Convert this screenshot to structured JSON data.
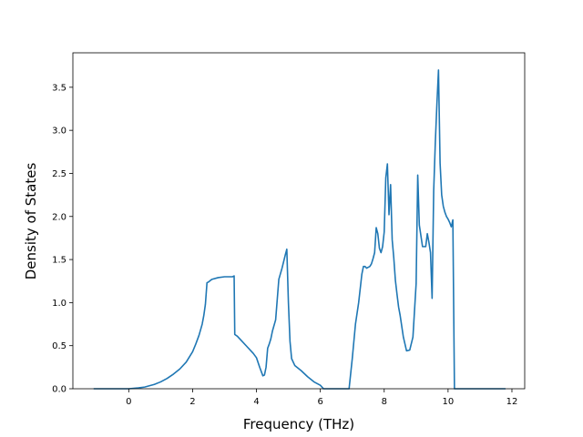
{
  "chart_data": {
    "type": "line",
    "title": "",
    "xlabel": "Frequency (THz)",
    "ylabel": "Density of States",
    "xlim": [
      -1.75,
      12.4
    ],
    "ylim": [
      0.0,
      3.9
    ],
    "x_ticks": [
      0,
      2,
      4,
      6,
      8,
      10,
      12
    ],
    "x_tick_labels": [
      "0",
      "2",
      "4",
      "6",
      "8",
      "10",
      "12"
    ],
    "y_ticks": [
      0.0,
      0.5,
      1.0,
      1.5,
      2.0,
      2.5,
      3.0,
      3.5
    ],
    "y_tick_labels": [
      "0.0",
      "0.5",
      "1.0",
      "1.5",
      "2.0",
      "2.5",
      "3.0",
      "3.5"
    ],
    "grid": false,
    "legend": "none",
    "colors": {
      "line": "#1f77b4",
      "axes": "#000000",
      "background": "#ffffff"
    },
    "series": [
      {
        "x": [
          -1.1,
          -0.5,
          0.0,
          0.3,
          0.5,
          0.8,
          1.0,
          1.2,
          1.4,
          1.6,
          1.8,
          2.0,
          2.1,
          2.2,
          2.3,
          2.35,
          2.4,
          2.45,
          2.5,
          2.6,
          2.8,
          3.0,
          3.2,
          3.25,
          3.3,
          3.32,
          3.4,
          3.5,
          3.7,
          3.9,
          4.0,
          4.1,
          4.15,
          4.2,
          4.25,
          4.3,
          4.35,
          4.4,
          4.45,
          4.5,
          4.6,
          4.7,
          4.8,
          4.9,
          4.95,
          5.0,
          5.05,
          5.1,
          5.2,
          5.4,
          5.6,
          5.8,
          6.0,
          6.1,
          6.3,
          6.6,
          6.9,
          7.0,
          7.1,
          7.2,
          7.3,
          7.35,
          7.4,
          7.45,
          7.5,
          7.55,
          7.6,
          7.65,
          7.7,
          7.75,
          7.8,
          7.85,
          7.9,
          7.95,
          8.0,
          8.05,
          8.1,
          8.15,
          8.2,
          8.25,
          8.3,
          8.35,
          8.4,
          8.45,
          8.5,
          8.6,
          8.7,
          8.8,
          8.9,
          9.0,
          9.05,
          9.1,
          9.2,
          9.3,
          9.35,
          9.4,
          9.45,
          9.5,
          9.55,
          9.6,
          9.65,
          9.7,
          9.75,
          9.8,
          9.85,
          9.9,
          9.95,
          10.0,
          10.05,
          10.1,
          10.15,
          10.2,
          10.3,
          10.4,
          10.5,
          10.6,
          10.7,
          10.72,
          10.75,
          11.0,
          11.8
        ],
        "y": [
          0.0,
          0.0,
          0.0,
          0.01,
          0.02,
          0.05,
          0.08,
          0.12,
          0.17,
          0.23,
          0.31,
          0.43,
          0.52,
          0.62,
          0.75,
          0.85,
          0.98,
          1.23,
          1.24,
          1.27,
          1.29,
          1.3,
          1.3,
          1.3,
          1.31,
          0.63,
          0.61,
          0.57,
          0.49,
          0.41,
          0.36,
          0.25,
          0.2,
          0.15,
          0.16,
          0.25,
          0.47,
          0.52,
          0.58,
          0.67,
          0.8,
          1.27,
          1.4,
          1.55,
          1.62,
          1.0,
          0.55,
          0.35,
          0.27,
          0.21,
          0.14,
          0.08,
          0.04,
          0.0,
          0.0,
          0.0,
          0.0,
          0.35,
          0.75,
          1.0,
          1.33,
          1.42,
          1.42,
          1.4,
          1.41,
          1.42,
          1.45,
          1.51,
          1.58,
          1.87,
          1.8,
          1.63,
          1.58,
          1.65,
          1.82,
          2.45,
          2.61,
          2.02,
          2.37,
          1.73,
          1.52,
          1.26,
          1.1,
          0.95,
          0.85,
          0.6,
          0.44,
          0.45,
          0.6,
          1.22,
          2.48,
          1.9,
          1.65,
          1.65,
          1.8,
          1.7,
          1.58,
          1.05,
          2.3,
          2.85,
          3.3,
          3.7,
          2.62,
          2.25,
          2.12,
          2.05,
          2.0,
          1.97,
          1.93,
          1.88,
          1.96,
          0.0,
          0.0,
          0.0,
          0.0,
          0.0,
          0.0,
          0.0,
          0.0,
          0.0,
          0.0
        ]
      }
    ]
  }
}
